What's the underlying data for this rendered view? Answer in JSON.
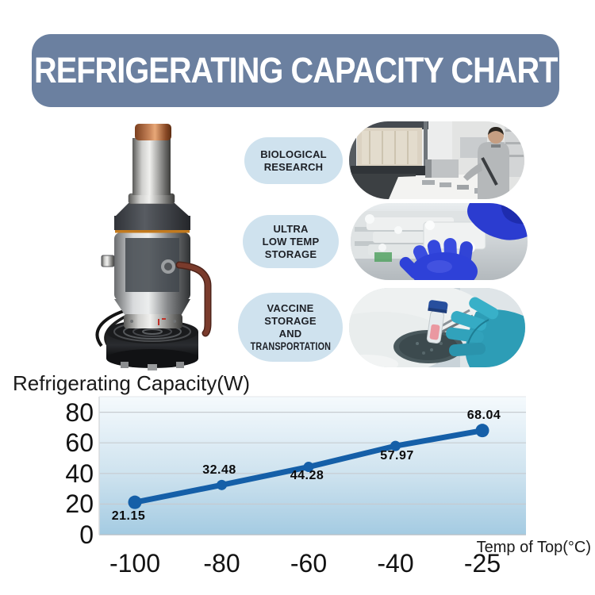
{
  "banner": {
    "title": "REFRIGERATING CAPACITY CHART"
  },
  "colors": {
    "banner_bg": "#6b80a0",
    "pill_bg": "#cfe2ee",
    "line": "#155fa8",
    "plot_bg_top": "#f5fafd",
    "plot_bg_bottom": "#a4cbe2"
  },
  "applications": [
    {
      "label_lines": [
        "BIOLOGICAL",
        "RESEARCH"
      ],
      "photo": "biological-research-lab"
    },
    {
      "label_lines": [
        "ULTRA",
        "LOW TEMP",
        "STORAGE"
      ],
      "photo": "ultra-low-temp-freezer"
    },
    {
      "label_lines": [
        "VACCINE",
        "STORAGE",
        "AND"
      ],
      "label_line_condensed": "TRANSPORTATION",
      "photo": "vaccine-vial-dry-ice"
    }
  ],
  "chart_data": {
    "type": "line",
    "title": "",
    "ylabel": "Refrigerating Capacity(W)",
    "xlabel": "Temp of Top(°C)",
    "x": [
      -100,
      -80,
      -60,
      -40,
      -25
    ],
    "x_tick_labels": [
      "-100",
      "-80",
      "-60",
      "-40",
      "-25"
    ],
    "values": [
      21.15,
      32.48,
      44.28,
      57.97,
      68.04
    ],
    "point_labels": [
      "21.15",
      "32.48",
      "44.28",
      "57.97",
      "68.04"
    ],
    "y_tick_labels": [
      "80",
      "60",
      "40",
      "20",
      "0"
    ],
    "y_ticks": [
      80,
      60,
      40,
      20,
      0
    ],
    "ylim": [
      0,
      90
    ],
    "grid": true,
    "legend": "none",
    "line_color": "#155fa8",
    "plot_bg_top": "#f5fafd",
    "plot_bg_bottom": "#a4cbe2"
  }
}
